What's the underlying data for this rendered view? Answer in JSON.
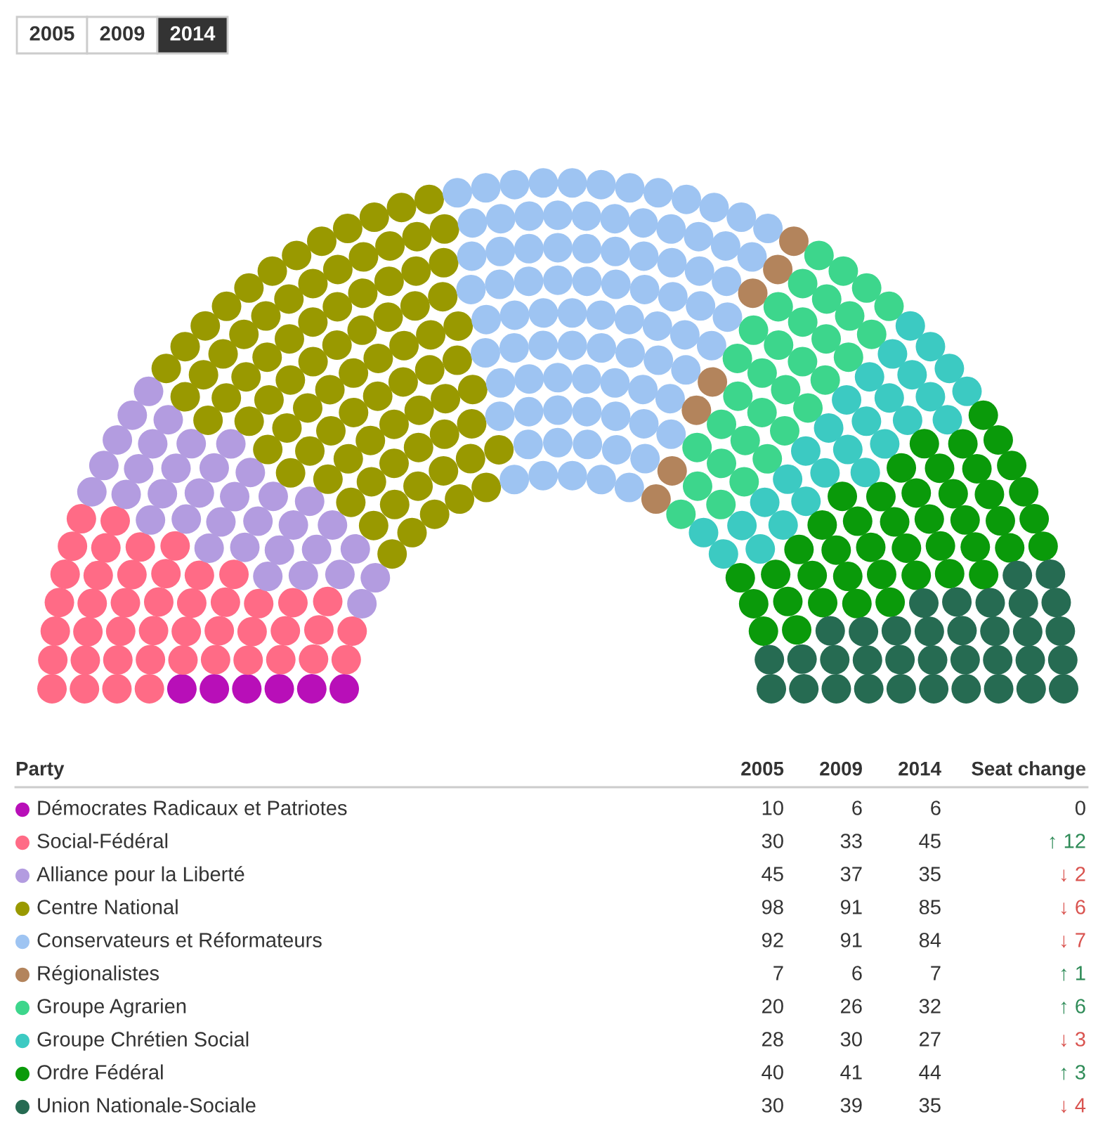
{
  "chart_data": {
    "type": "other",
    "legend_title": "Party",
    "data_labels": true,
    "categories": [
      "Démocrates Radicaux et Patriotes",
      "Social-Fédéral",
      "Alliance pour la Liberté",
      "Centre National",
      "Conservateurs et Réformateurs",
      "Régionalistes",
      "Groupe Agrarien",
      "Groupe Chrétien Social",
      "Ordre Fédéral",
      "Union Nationale-Sociale"
    ],
    "colors": [
      "#b80fb8",
      "#ff6b86",
      "#b39ce0",
      "#999900",
      "#9ec4f2",
      "#b3845c",
      "#3dd68c",
      "#3ccac2",
      "#0a9a0a",
      "#266b52"
    ],
    "series": [
      {
        "name": "2005",
        "values": [
          10,
          30,
          45,
          98,
          92,
          7,
          20,
          28,
          40,
          30
        ]
      },
      {
        "name": "2009",
        "values": [
          6,
          33,
          37,
          91,
          91,
          6,
          26,
          30,
          41,
          39
        ]
      },
      {
        "name": "2014",
        "values": [
          6,
          45,
          35,
          85,
          84,
          7,
          32,
          27,
          44,
          35
        ]
      }
    ],
    "annotations": [
      "Seat change",
      "0",
      "↑ 12",
      "↓ 2",
      "↓ 6",
      "↓ 7",
      "↑ 1",
      "↑ 6",
      "↓ 3",
      "↑ 3",
      "↓ 4"
    ]
  }
}
